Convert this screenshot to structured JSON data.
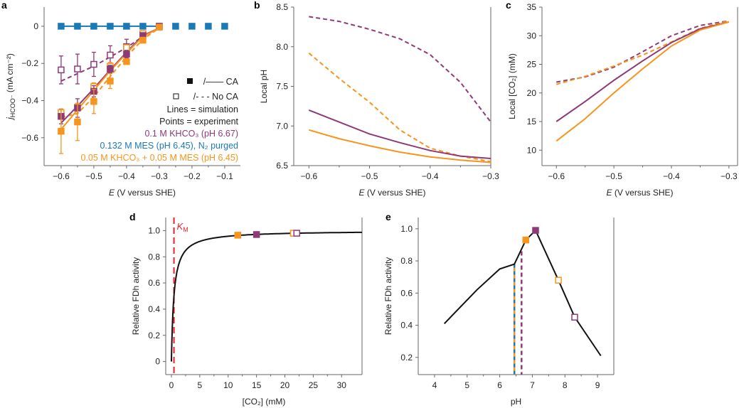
{
  "colors": {
    "purple": "#8e3a77",
    "orange": "#f7941d",
    "blue": "#1a7ab5",
    "red": "#e8202a",
    "black": "#111111"
  },
  "chart_data": [
    {
      "panel": "a",
      "type": "line",
      "xlabel_italic": "E",
      "xlabel": " (V versus SHE)",
      "ylabel_main": "j",
      "ylabel_sub": "HCOO⁻",
      "ylabel_rest": " (mA cm⁻²)",
      "xlim": [
        -0.652,
        -0.052
      ],
      "ylim": [
        -0.75,
        0.103
      ],
      "xticks": [
        -0.6,
        -0.5,
        -0.4,
        -0.3,
        -0.2,
        -0.1
      ],
      "xtick_labels": [
        "−0.6",
        "−0.5",
        "−0.4",
        "−0.3",
        "−0.2",
        "−0.1"
      ],
      "yticks": [
        0,
        -0.2,
        -0.4,
        -0.6
      ],
      "ytick_labels": [
        "0",
        "−0.2",
        "−0.4",
        "−0.6"
      ],
      "legend": {
        "ca_label": "/—— CA",
        "noca_label": "/- - - No CA",
        "lines_note": "Lines = simulation",
        "points_note": "Points = experiment",
        "items": [
          {
            "text": "0.1 M KHCO₃ (pH 6.67)",
            "color": "purple"
          },
          {
            "text": "0.132 M MES (pH 6.45), N₂ purged",
            "color": "blue"
          },
          {
            "text": "0.05 M KHCO₃ + 0.05 M MES (pH 6.45)",
            "color": "orange"
          }
        ]
      },
      "lines": [
        {
          "color": "blue",
          "dashed": false,
          "x": [
            -0.6,
            -0.3
          ],
          "y": [
            0,
            0
          ]
        },
        {
          "color": "purple",
          "dashed": true,
          "x": [
            -0.6,
            -0.55,
            -0.5,
            -0.45,
            -0.4,
            -0.35,
            -0.3
          ],
          "y": [
            -0.295,
            -0.255,
            -0.215,
            -0.165,
            -0.115,
            -0.055,
            -0.01
          ]
        },
        {
          "color": "orange",
          "dashed": true,
          "x": [
            -0.6,
            -0.55,
            -0.5,
            -0.45,
            -0.4,
            -0.35,
            -0.3
          ],
          "y": [
            -0.49,
            -0.47,
            -0.38,
            -0.27,
            -0.165,
            -0.07,
            -0.01
          ]
        },
        {
          "color": "purple",
          "dashed": false,
          "x": [
            -0.6,
            -0.55,
            -0.5,
            -0.45,
            -0.4,
            -0.35,
            -0.3
          ],
          "y": [
            -0.52,
            -0.43,
            -0.335,
            -0.235,
            -0.14,
            -0.05,
            -0.01
          ]
        },
        {
          "color": "orange",
          "dashed": false,
          "x": [
            -0.6,
            -0.55,
            -0.5,
            -0.45,
            -0.4,
            -0.35,
            -0.3
          ],
          "y": [
            -0.555,
            -0.45,
            -0.345,
            -0.24,
            -0.145,
            -0.055,
            -0.01
          ]
        }
      ],
      "points": [
        {
          "color": "blue",
          "filled": true,
          "x": [
            -0.6,
            -0.55,
            -0.5,
            -0.45,
            -0.4,
            -0.35,
            -0.3,
            -0.25,
            -0.2,
            -0.15,
            -0.1
          ],
          "y": [
            0,
            0,
            0,
            0,
            0,
            0,
            0,
            0,
            0,
            0,
            0
          ],
          "err": [
            0,
            0,
            0,
            0,
            0,
            0,
            0,
            0,
            0,
            0,
            0
          ]
        },
        {
          "color": "purple",
          "filled": false,
          "x": [
            -0.6,
            -0.55,
            -0.5,
            -0.45,
            -0.4,
            -0.35
          ],
          "y": [
            -0.235,
            -0.23,
            -0.205,
            -0.155,
            -0.11,
            -0.04
          ],
          "err": [
            0.075,
            0.08,
            0.065,
            0.05,
            0.04,
            0.015
          ]
        },
        {
          "color": "orange",
          "filled": false,
          "x": [
            -0.6,
            -0.55,
            -0.5,
            -0.45,
            -0.4,
            -0.35
          ],
          "y": [
            -0.465,
            -0.435,
            -0.325,
            -0.215,
            -0.115,
            -0.04
          ],
          "err": [
            0.02,
            0.02,
            0.02,
            0.02,
            0.015,
            0.01
          ]
        },
        {
          "color": "purple",
          "filled": true,
          "x": [
            -0.6,
            -0.55,
            -0.5,
            -0.45,
            -0.4,
            -0.35,
            -0.3
          ],
          "y": [
            -0.485,
            -0.44,
            -0.35,
            -0.23,
            -0.15,
            -0.05,
            0
          ],
          "err": [
            0.04,
            0.05,
            0.03,
            0.02,
            0.02,
            0.01,
            0
          ]
        },
        {
          "color": "orange",
          "filled": true,
          "x": [
            -0.6,
            -0.55,
            -0.5,
            -0.45,
            -0.4,
            -0.35,
            -0.3
          ],
          "y": [
            -0.565,
            -0.515,
            -0.405,
            -0.295,
            -0.19,
            -0.075,
            -0.005
          ],
          "err": [
            0.12,
            0.1,
            0.065,
            0.04,
            0.015,
            0.01,
            0
          ]
        }
      ]
    },
    {
      "panel": "b",
      "type": "line",
      "xlabel_italic": "E",
      "xlabel": " (V versus SHE)",
      "ylabel": "Local pH",
      "xlim": [
        -0.625,
        -0.3
      ],
      "ylim": [
        6.5,
        8.5
      ],
      "xticks": [
        -0.6,
        -0.5,
        -0.4,
        -0.3
      ],
      "xtick_labels": [
        "−0.6",
        "−0.5",
        "−0.4",
        "−0.3"
      ],
      "yticks": [
        6.5,
        7.0,
        7.5,
        8.0,
        8.5
      ],
      "ytick_labels": [
        "6.5",
        "7.0",
        "7.5",
        "8.0",
        "8.5"
      ],
      "lines": [
        {
          "color": "purple",
          "dashed": true,
          "x": [
            -0.6,
            -0.55,
            -0.5,
            -0.45,
            -0.4,
            -0.35,
            -0.3
          ],
          "y": [
            8.38,
            8.32,
            8.22,
            8.1,
            7.9,
            7.55,
            7.05
          ]
        },
        {
          "color": "orange",
          "dashed": true,
          "x": [
            -0.6,
            -0.55,
            -0.5,
            -0.45,
            -0.4,
            -0.35,
            -0.3
          ],
          "y": [
            7.92,
            7.6,
            7.3,
            6.95,
            6.72,
            6.62,
            6.55
          ]
        },
        {
          "color": "purple",
          "dashed": false,
          "x": [
            -0.6,
            -0.55,
            -0.5,
            -0.45,
            -0.4,
            -0.35,
            -0.3
          ],
          "y": [
            7.2,
            7.05,
            6.9,
            6.79,
            6.69,
            6.62,
            6.59
          ]
        },
        {
          "color": "orange",
          "dashed": false,
          "x": [
            -0.6,
            -0.55,
            -0.5,
            -0.45,
            -0.4,
            -0.35,
            -0.3
          ],
          "y": [
            6.95,
            6.84,
            6.75,
            6.67,
            6.61,
            6.57,
            6.54
          ]
        }
      ],
      "points": []
    },
    {
      "panel": "c",
      "type": "line",
      "xlabel_italic": "E",
      "xlabel": " (V versus SHE)",
      "ylabel": "Local [CO₂] (mM)",
      "xlim": [
        -0.625,
        -0.285
      ],
      "ylim": [
        7.3,
        35
      ],
      "xticks": [
        -0.6,
        -0.5,
        -0.4,
        -0.3
      ],
      "xtick_labels": [
        "−0.6",
        "−0.5",
        "−0.4",
        "−0.3"
      ],
      "yticks": [
        10,
        15,
        20,
        25,
        30,
        35
      ],
      "ytick_labels": [
        "10",
        "15",
        "20",
        "25",
        "30",
        "35"
      ],
      "lines": [
        {
          "color": "purple",
          "dashed": true,
          "x": [
            -0.6,
            -0.55,
            -0.5,
            -0.45,
            -0.4,
            -0.35,
            -0.3
          ],
          "y": [
            21.9,
            22.8,
            24.5,
            27.2,
            30,
            31.8,
            32.6
          ]
        },
        {
          "color": "orange",
          "dashed": true,
          "x": [
            -0.6,
            -0.55,
            -0.5,
            -0.45,
            -0.4,
            -0.35,
            -0.3
          ],
          "y": [
            21.5,
            22.9,
            24.7,
            26.6,
            28.9,
            31.3,
            32.6
          ]
        },
        {
          "color": "purple",
          "dashed": false,
          "x": [
            -0.6,
            -0.55,
            -0.5,
            -0.45,
            -0.4,
            -0.35,
            -0.3
          ],
          "y": [
            15,
            18.5,
            22.2,
            25.6,
            28.8,
            31.2,
            32.4
          ]
        },
        {
          "color": "orange",
          "dashed": false,
          "x": [
            -0.6,
            -0.55,
            -0.5,
            -0.45,
            -0.4,
            -0.35,
            -0.3
          ],
          "y": [
            11.6,
            15.5,
            20,
            24.2,
            28.2,
            31,
            32.4
          ]
        }
      ],
      "points": []
    },
    {
      "panel": "d",
      "type": "line",
      "xlabel": "[CO₂] (mM)",
      "ylabel": "Relative FDh activity",
      "km_label": "K",
      "km_sub": "M",
      "km_value": 0.45,
      "xlim": [
        -1,
        33.6
      ],
      "ylim": [
        -0.1,
        1.1
      ],
      "xticks": [
        0,
        5,
        10,
        15,
        20,
        25,
        30
      ],
      "xtick_labels": [
        "0",
        "5",
        "10",
        "15",
        "20",
        "25",
        "30"
      ],
      "yticks": [
        0,
        0.2,
        0.4,
        0.6,
        0.8,
        1.0
      ],
      "ytick_labels": [
        "0",
        "0.2",
        "0.4",
        "0.6",
        "0.8",
        "1.0"
      ],
      "curve": "michaelis-menten",
      "lines": [],
      "points": [
        {
          "color": "orange",
          "filled": true,
          "x": [
            11.7
          ],
          "y": [
            0.965
          ]
        },
        {
          "color": "purple",
          "filled": true,
          "x": [
            15.0
          ],
          "y": [
            0.97
          ]
        },
        {
          "color": "orange",
          "filled": false,
          "x": [
            21.5
          ],
          "y": [
            0.98
          ]
        },
        {
          "color": "purple",
          "filled": false,
          "x": [
            22.1
          ],
          "y": [
            0.98
          ]
        }
      ]
    },
    {
      "panel": "e",
      "type": "line",
      "xlabel": "pH",
      "ylabel": "Relative FDh activity",
      "xlim": [
        3.5,
        9.5
      ],
      "ylim": [
        0.093,
        1.07
      ],
      "xticks": [
        4,
        5,
        6,
        7,
        8,
        9
      ],
      "xtick_labels": [
        "4",
        "5",
        "6",
        "7",
        "8",
        "9"
      ],
      "yticks": [
        0.2,
        0.4,
        0.6,
        0.8,
        1.0
      ],
      "ytick_labels": [
        "0.2",
        "0.4",
        "0.6",
        "0.8",
        "1.0"
      ],
      "vlines": [
        {
          "x": 6.45,
          "colors": [
            "orange",
            "blue"
          ]
        },
        {
          "x": 6.67,
          "colors": [
            "purple"
          ]
        }
      ],
      "lines": [
        {
          "color": "black",
          "dashed": false,
          "x": [
            4.3,
            5.3,
            6.0,
            6.45,
            6.8,
            7.1,
            7.8,
            8.3,
            9.1
          ],
          "y": [
            0.41,
            0.62,
            0.75,
            0.78,
            0.93,
            0.99,
            0.68,
            0.45,
            0.21
          ]
        }
      ],
      "points": [
        {
          "color": "orange",
          "filled": true,
          "x": [
            6.8
          ],
          "y": [
            0.93
          ]
        },
        {
          "color": "purple",
          "filled": true,
          "x": [
            7.1
          ],
          "y": [
            0.99
          ]
        },
        {
          "color": "orange",
          "filled": false,
          "x": [
            7.8
          ],
          "y": [
            0.68
          ]
        },
        {
          "color": "purple",
          "filled": false,
          "x": [
            8.3
          ],
          "y": [
            0.45
          ]
        }
      ]
    }
  ]
}
